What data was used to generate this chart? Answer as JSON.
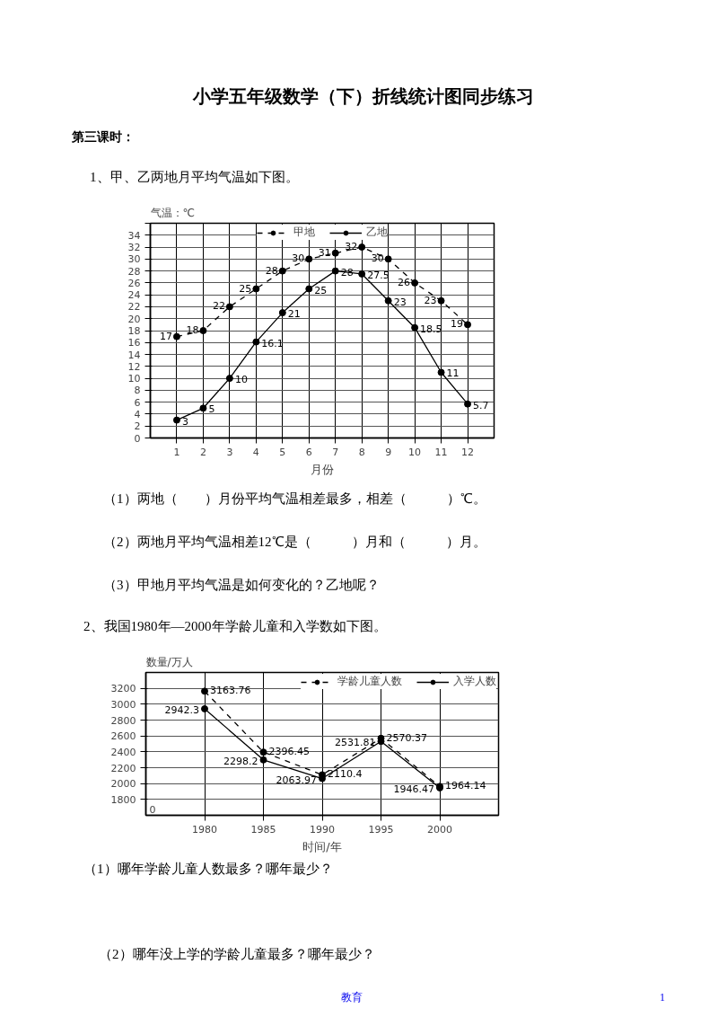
{
  "chart_data": [
    {
      "type": "line",
      "title": "小学五年级数学（下）折线统计图同步练习",
      "subtitle": "第三课时：",
      "xlabel": "月份",
      "ylabel": "气温：℃",
      "x": [
        1,
        2,
        3,
        4,
        5,
        6,
        7,
        8,
        9,
        10,
        11,
        12
      ],
      "series": [
        {
          "name": "甲地",
          "color": "#000000",
          "line_style": "dashed",
          "values": [
            17,
            18,
            22,
            25,
            28,
            30,
            31,
            32,
            30,
            26,
            23,
            19
          ]
        },
        {
          "name": "乙地",
          "color": "#000000",
          "line_style": "solid",
          "values": [
            3,
            5,
            10,
            16.1,
            21,
            25,
            28,
            27.5,
            23,
            18.5,
            11,
            5.7
          ]
        }
      ],
      "xlim": [
        0,
        13
      ],
      "xticks": [
        1,
        2,
        3,
        4,
        5,
        6,
        7,
        8,
        9,
        10,
        11,
        12
      ],
      "ylim": [
        0,
        36
      ],
      "yticks": [
        0,
        2,
        4,
        6,
        8,
        10,
        12,
        14,
        16,
        18,
        20,
        22,
        24,
        26,
        28,
        30,
        32,
        34,
        {
          "value": 36,
          "label": null
        }
      ],
      "grid": true,
      "legend": "top",
      "marker": "circle",
      "data_labels": true,
      "annotations": [
        "1、甲、乙两地月平均气温如下图。",
        "（1）两地（　　）月份平均气温相差最多，相差（　　　）℃。",
        "（2）两地月平均气温相差12℃是（　　　）月和（　　　）月。",
        "（3）甲地月平均气温是如何变化的？乙地呢？"
      ]
    },
    {
      "type": "line",
      "xlabel": "时间/年",
      "ylabel": "数量/万人",
      "x": [
        1980,
        1985,
        1990,
        1995,
        2000
      ],
      "series": [
        {
          "name": "学龄儿童人数",
          "color": "#000000",
          "line_style": "dashed",
          "values": [
            3163.76,
            2396.45,
            2110.4,
            2570.37,
            1964.14
          ]
        },
        {
          "name": "入学人数",
          "color": "#000000",
          "line_style": "solid",
          "values": [
            2942.3,
            2298.2,
            2063.97,
            2531.81,
            1946.47
          ]
        }
      ],
      "xlim": [
        1975,
        2005
      ],
      "xticks": [
        1980,
        1985,
        1990,
        1995,
        2000
      ],
      "ylim": [
        1600,
        3400
      ],
      "yticks": [
        1800,
        2000,
        2200,
        2400,
        2600,
        2800,
        3000,
        3200
      ],
      "grid": true,
      "legend": "top right",
      "marker": "circle",
      "data_labels": true,
      "annotations": [
        "2、我国1980年—2000年学龄儿童和入学数如下图。",
        "（1）哪年学龄儿童人数最多？哪年最少？",
        "（2）哪年没上学的学龄儿童最多？哪年最少？",
        "教育",
        "1",
        "0"
      ]
    }
  ]
}
